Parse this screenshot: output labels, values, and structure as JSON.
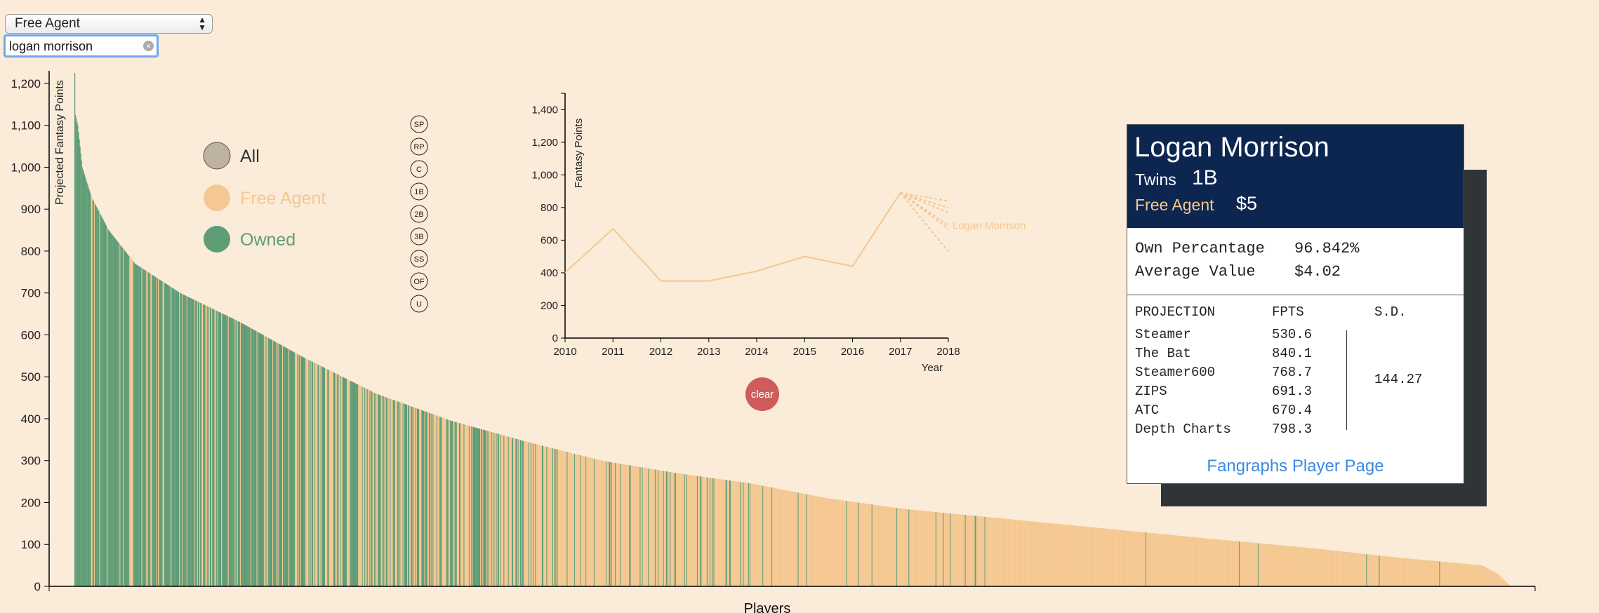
{
  "filter": {
    "selected": "Free Agent"
  },
  "search": {
    "value": "logan morrison"
  },
  "legend": {
    "items": [
      {
        "label": "All",
        "color": "#bdb3a0"
      },
      {
        "label": "Free Agent",
        "color": "#f5c891"
      },
      {
        "label": "Owned",
        "color": "#5f9d77"
      }
    ]
  },
  "positions": [
    "SP",
    "RP",
    "C",
    "1B",
    "2B",
    "3B",
    "SS",
    "OF",
    "U"
  ],
  "main_chart": {
    "ylabel": "Projected Fantasy Points",
    "xlabel": "Players",
    "yticks": [
      "0",
      "100",
      "200",
      "300",
      "400",
      "500",
      "600",
      "700",
      "800",
      "900",
      "1,000",
      "1,100",
      "1,200"
    ]
  },
  "chart_data": [
    {
      "type": "bar",
      "xlabel": "Players",
      "ylabel": "Projected Fantasy Points",
      "ylim": [
        0,
        1230
      ],
      "player_count": 700,
      "points_profile": [
        [
          0,
          1225
        ],
        [
          1,
          1125
        ],
        [
          4,
          1100
        ],
        [
          10,
          1000
        ],
        [
          22,
          930
        ],
        [
          45,
          850
        ],
        [
          80,
          770
        ],
        [
          140,
          700
        ],
        [
          220,
          630
        ],
        [
          300,
          550
        ],
        [
          400,
          460
        ],
        [
          500,
          395
        ],
        [
          600,
          345
        ],
        [
          700,
          300
        ],
        [
          800,
          270
        ],
        [
          900,
          245
        ],
        [
          1000,
          210
        ],
        [
          1100,
          185
        ],
        [
          1300,
          150
        ],
        [
          1500,
          115
        ],
        [
          1650,
          90
        ],
        [
          1750,
          70
        ],
        [
          1870,
          50
        ],
        [
          1890,
          30
        ],
        [
          1905,
          5
        ]
      ],
      "series": [
        {
          "name": "Free Agent",
          "color": "#f5c891"
        },
        {
          "name": "Owned",
          "color": "#5f9d77"
        }
      ]
    },
    {
      "type": "line",
      "xlabel": "Year",
      "ylabel": "Fantasy Points",
      "xlim": [
        2010,
        2018
      ],
      "ylim": [
        0,
        1500
      ],
      "x": [
        2010,
        2011,
        2012,
        2013,
        2014,
        2015,
        2016,
        2017
      ],
      "series": [
        {
          "name": "Logan Morrison",
          "values": [
            400,
            670,
            350,
            350,
            410,
            500,
            440,
            890
          ]
        }
      ],
      "projections": [
        530.6,
        840.1,
        768.7,
        691.3,
        670.4,
        798.3
      ],
      "xticks": [
        "2010",
        "2011",
        "2012",
        "2013",
        "2014",
        "2015",
        "2016",
        "2017",
        "2018"
      ],
      "yticks": [
        "0",
        "200",
        "400",
        "600",
        "800",
        "1,000",
        "1,200",
        "1,400"
      ]
    }
  ],
  "clear_label": "clear",
  "player": {
    "name": "Logan Morrison",
    "team": "Twins",
    "position": "1B",
    "status": "Free Agent",
    "price": "$5",
    "own_label": "Own Percantage",
    "own_value": "96.842%",
    "avg_label": "Average Value",
    "avg_value": "$4.02",
    "proj_header": [
      "PROJECTION",
      "FPTS",
      "S.D."
    ],
    "projections": [
      {
        "name": "Steamer",
        "fpts": "530.6"
      },
      {
        "name": "The Bat",
        "fpts": "840.1"
      },
      {
        "name": "Steamer600",
        "fpts": "768.7"
      },
      {
        "name": "ZIPS",
        "fpts": "691.3"
      },
      {
        "name": "ATC",
        "fpts": "670.4"
      },
      {
        "name": "Depth Charts",
        "fpts": "798.3"
      }
    ],
    "sd": "144.27",
    "link": "Fangraphs Player Page"
  },
  "colors": {
    "background": "#fbebd9",
    "free_agent": "#f5c891",
    "owned": "#5f9d77",
    "all": "#bdb3a0",
    "card_head": "#0d2650",
    "clear": "#cf5b5b"
  }
}
